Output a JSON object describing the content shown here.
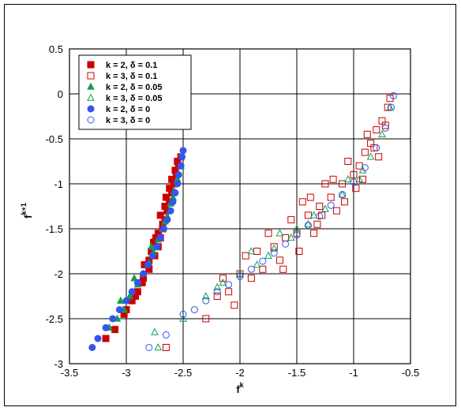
{
  "chart_data": {
    "type": "scatter",
    "title": "",
    "xlabel_base": "f",
    "xlabel_sup": "k",
    "ylabel_base": "f",
    "ylabel_sup": "k+1",
    "xlim": [
      -3.5,
      -0.5
    ],
    "ylim": [
      -3,
      0.5
    ],
    "xticks": [
      -3.5,
      -3,
      -2.5,
      -2,
      -1.5,
      -1,
      -0.5
    ],
    "xtick_labels": [
      "-3.5",
      "-3",
      "-2.5",
      "-2",
      "-1.5",
      "-1",
      "-0.5"
    ],
    "yticks": [
      -3,
      -2.5,
      -2,
      -1.5,
      -1,
      -0.5,
      0,
      0.5
    ],
    "ytick_labels": [
      "-3",
      "-2.5",
      "-2",
      "-1.5",
      "-1",
      "-0.5",
      "0",
      "0.5"
    ],
    "grid": true,
    "legend_position": "top-left",
    "series": [
      {
        "name": "k = 2, δ = 0.1",
        "marker": "square",
        "filled": true,
        "color": "#cc0000",
        "points": [
          [
            -3.18,
            -2.72
          ],
          [
            -3.1,
            -2.62
          ],
          [
            -3.02,
            -2.45
          ],
          [
            -2.95,
            -2.3
          ],
          [
            -2.9,
            -2.2
          ],
          [
            -2.85,
            -2.05
          ],
          [
            -2.8,
            -1.95
          ],
          [
            -2.75,
            -1.8
          ],
          [
            -2.72,
            -1.7
          ],
          [
            -2.7,
            -1.6
          ],
          [
            -2.68,
            -1.5
          ],
          [
            -2.66,
            -1.4
          ],
          [
            -2.64,
            -1.3
          ],
          [
            -2.62,
            -1.2
          ],
          [
            -2.6,
            -1.1
          ],
          [
            -2.58,
            -1.0
          ],
          [
            -2.56,
            -0.9
          ],
          [
            -2.54,
            -0.8
          ],
          [
            -2.52,
            -0.7
          ],
          [
            -2.74,
            -1.6
          ],
          [
            -2.72,
            -1.55
          ],
          [
            -2.78,
            -1.75
          ],
          [
            -2.84,
            -1.9
          ],
          [
            -2.86,
            -2.1
          ],
          [
            -2.92,
            -2.25
          ],
          [
            -3.0,
            -2.4
          ],
          [
            -2.7,
            -1.35
          ],
          [
            -2.66,
            -1.25
          ],
          [
            -2.62,
            -1.05
          ],
          [
            -2.6,
            -0.95
          ],
          [
            -2.57,
            -0.85
          ],
          [
            -2.55,
            -0.75
          ],
          [
            -2.68,
            -1.45
          ],
          [
            -2.76,
            -1.65
          ],
          [
            -2.8,
            -1.85
          ],
          [
            -2.65,
            -1.15
          ]
        ]
      },
      {
        "name": "k = 3, δ = 0.1",
        "marker": "square",
        "filled": false,
        "color": "#cc0000",
        "points": [
          [
            -2.65,
            -2.82
          ],
          [
            -2.3,
            -2.5
          ],
          [
            -2.0,
            -2.0
          ],
          [
            -2.1,
            -2.2
          ],
          [
            -1.9,
            -2.05
          ],
          [
            -1.8,
            -1.95
          ],
          [
            -1.7,
            -1.7
          ],
          [
            -1.6,
            -1.6
          ],
          [
            -1.5,
            -1.55
          ],
          [
            -1.4,
            -1.35
          ],
          [
            -1.3,
            -1.25
          ],
          [
            -1.2,
            -1.15
          ],
          [
            -1.1,
            -1.0
          ],
          [
            -1.0,
            -0.9
          ],
          [
            -0.95,
            -0.8
          ],
          [
            -0.9,
            -0.65
          ],
          [
            -0.85,
            -0.55
          ],
          [
            -0.8,
            -0.4
          ],
          [
            -0.75,
            -0.3
          ],
          [
            -0.7,
            -0.15
          ],
          [
            -0.68,
            -0.05
          ],
          [
            -1.45,
            -1.2
          ],
          [
            -1.35,
            -1.55
          ],
          [
            -1.25,
            -1.0
          ],
          [
            -1.15,
            -1.3
          ],
          [
            -1.05,
            -0.75
          ],
          [
            -0.98,
            -1.05
          ],
          [
            -0.88,
            -0.45
          ],
          [
            -1.55,
            -1.4
          ],
          [
            -1.65,
            -1.85
          ],
          [
            -1.75,
            -1.55
          ],
          [
            -1.85,
            -1.75
          ],
          [
            -2.2,
            -2.25
          ],
          [
            -2.05,
            -2.35
          ],
          [
            -1.95,
            -1.8
          ],
          [
            -1.62,
            -1.95
          ],
          [
            -1.48,
            -1.75
          ],
          [
            -1.32,
            -1.45
          ],
          [
            -1.18,
            -0.95
          ],
          [
            -1.08,
            -1.2
          ],
          [
            -0.92,
            -0.95
          ],
          [
            -0.82,
            -0.6
          ],
          [
            -0.78,
            -0.7
          ],
          [
            -0.72,
            -0.35
          ],
          [
            -1.38,
            -1.15
          ],
          [
            -1.28,
            -1.35
          ],
          [
            -2.15,
            -2.05
          ]
        ]
      },
      {
        "name": "k = 2, δ = 0.05",
        "marker": "triangle",
        "filled": true,
        "color": "#10a050",
        "points": [
          [
            -3.15,
            -2.6
          ],
          [
            -3.08,
            -2.5
          ],
          [
            -3.02,
            -2.4
          ],
          [
            -2.97,
            -2.25
          ],
          [
            -2.9,
            -2.12
          ],
          [
            -2.85,
            -2.0
          ],
          [
            -2.8,
            -1.88
          ],
          [
            -2.76,
            -1.76
          ],
          [
            -2.72,
            -1.62
          ],
          [
            -2.68,
            -1.5
          ],
          [
            -2.64,
            -1.36
          ],
          [
            -2.61,
            -1.22
          ],
          [
            -2.58,
            -1.08
          ],
          [
            -2.55,
            -0.95
          ],
          [
            -2.52,
            -0.8
          ],
          [
            -3.05,
            -2.3
          ],
          [
            -2.93,
            -2.05
          ],
          [
            -2.78,
            -1.7
          ],
          [
            -2.66,
            -1.42
          ],
          [
            -2.59,
            -1.15
          ]
        ]
      },
      {
        "name": "k = 3, δ = 0.05",
        "marker": "triangle",
        "filled": false,
        "color": "#10a050",
        "points": [
          [
            -2.72,
            -2.82
          ],
          [
            -2.75,
            -2.65
          ],
          [
            -2.5,
            -2.5
          ],
          [
            -2.3,
            -2.25
          ],
          [
            -2.15,
            -2.1
          ],
          [
            -2.0,
            -2.0
          ],
          [
            -1.85,
            -1.9
          ],
          [
            -1.7,
            -1.72
          ],
          [
            -1.55,
            -1.6
          ],
          [
            -1.4,
            -1.45
          ],
          [
            -1.25,
            -1.28
          ],
          [
            -1.1,
            -1.12
          ],
          [
            -0.95,
            -0.95
          ],
          [
            -0.85,
            -0.7
          ],
          [
            -0.75,
            -0.45
          ],
          [
            -0.68,
            -0.15
          ],
          [
            -1.9,
            -1.75
          ],
          [
            -1.65,
            -1.55
          ],
          [
            -1.35,
            -1.35
          ],
          [
            -1.05,
            -0.95
          ],
          [
            -0.92,
            -0.85
          ],
          [
            -1.5,
            -1.5
          ],
          [
            -1.75,
            -1.8
          ],
          [
            -2.2,
            -2.15
          ]
        ]
      },
      {
        "name": "k = 2, δ = 0",
        "marker": "circle",
        "filled": true,
        "color": "#3355ee",
        "points": [
          [
            -3.3,
            -2.82
          ],
          [
            -3.25,
            -2.72
          ],
          [
            -3.18,
            -2.6
          ],
          [
            -3.12,
            -2.5
          ],
          [
            -3.06,
            -2.4
          ],
          [
            -3.0,
            -2.3
          ],
          [
            -2.95,
            -2.2
          ],
          [
            -2.9,
            -2.1
          ],
          [
            -2.85,
            -2.0
          ],
          [
            -2.81,
            -1.9
          ],
          [
            -2.77,
            -1.8
          ],
          [
            -2.73,
            -1.7
          ],
          [
            -2.7,
            -1.6
          ],
          [
            -2.67,
            -1.5
          ],
          [
            -2.64,
            -1.4
          ],
          [
            -2.61,
            -1.3
          ],
          [
            -2.59,
            -1.2
          ],
          [
            -2.57,
            -1.1
          ],
          [
            -2.55,
            -1.0
          ],
          [
            -2.54,
            -0.9
          ],
          [
            -2.52,
            -0.8
          ],
          [
            -2.51,
            -0.7
          ],
          [
            -2.5,
            -0.63
          ]
        ]
      },
      {
        "name": "k = 3, δ = 0",
        "marker": "circle",
        "filled": false,
        "color": "#3355ee",
        "points": [
          [
            -2.8,
            -2.82
          ],
          [
            -2.65,
            -2.68
          ],
          [
            -2.5,
            -2.45
          ],
          [
            -2.4,
            -2.4
          ],
          [
            -2.3,
            -2.3
          ],
          [
            -2.2,
            -2.2
          ],
          [
            -2.1,
            -2.12
          ],
          [
            -2.0,
            -2.03
          ],
          [
            -1.9,
            -1.95
          ],
          [
            -1.8,
            -1.86
          ],
          [
            -1.7,
            -1.77
          ],
          [
            -1.6,
            -1.67
          ],
          [
            -1.5,
            -1.57
          ],
          [
            -1.4,
            -1.46
          ],
          [
            -1.3,
            -1.36
          ],
          [
            -1.2,
            -1.24
          ],
          [
            -1.1,
            -1.12
          ],
          [
            -1.0,
            -0.98
          ],
          [
            -0.9,
            -0.82
          ],
          [
            -0.8,
            -0.6
          ],
          [
            -0.72,
            -0.38
          ],
          [
            -0.67,
            -0.15
          ],
          [
            -0.65,
            -0.02
          ]
        ]
      }
    ]
  }
}
